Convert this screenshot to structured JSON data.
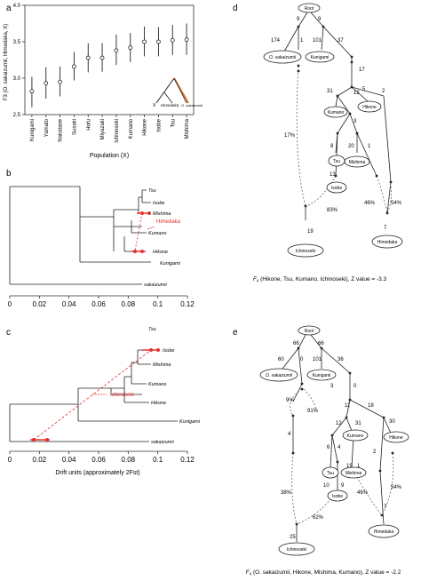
{
  "panel_labels": {
    "a": "a",
    "b": "b",
    "c": "c",
    "d": "d",
    "e": "e"
  },
  "panel_a": {
    "ylabel": "F3 (O. sakaizumii; Himedaka, X)",
    "xlabel": "Population (X)",
    "inset": {
      "left": "Himedaka",
      "right": "O. sakaizumii",
      "x_mark": "X"
    }
  },
  "chart_data": {
    "type": "scatter",
    "title": "",
    "xlabel": "Population (X)",
    "ylabel": "F3 (O. sakaizumii; Himedaka, X)",
    "categories": [
      "Kunigami",
      "Yamato",
      "Nakatane",
      "Susaki",
      "Hofu",
      "Miyazaki",
      "Ichinoseki",
      "Kumano",
      "Hikone",
      "Isobe",
      "Tsu",
      "Mishima"
    ],
    "values": [
      2.82,
      2.93,
      2.95,
      3.16,
      3.28,
      3.28,
      3.38,
      3.42,
      3.5,
      3.5,
      3.52,
      3.53
    ],
    "error_low": [
      2.6,
      2.72,
      2.75,
      2.97,
      3.08,
      3.09,
      3.18,
      3.22,
      3.3,
      3.3,
      3.32,
      3.32
    ],
    "error_high": [
      3.02,
      3.15,
      3.16,
      3.36,
      3.48,
      3.48,
      3.6,
      3.62,
      3.71,
      3.7,
      3.73,
      3.75
    ],
    "ylim": [
      2.5,
      4.0
    ],
    "yticks": [
      "2.5",
      "3.0",
      "3.5",
      "4.0"
    ]
  },
  "tree_b": {
    "tips": [
      "Tsu",
      "Isobe",
      "Mishima",
      "Kumano",
      "Hikone",
      "Kunigami",
      "sakaizumii"
    ],
    "migrant": "Himedaka",
    "xticks": [
      "0",
      "0.02",
      "0.04",
      "0.06",
      "0.08",
      "0.1",
      "0.12"
    ]
  },
  "tree_c": {
    "tips": [
      "Tsu",
      "Isobe",
      "Mishima",
      "Kumano",
      "Hikone",
      "Kunigami",
      "sakaizumii"
    ],
    "migrant": "Ichinoseki",
    "xticks": [
      "0",
      "0.02",
      "0.04",
      "0.06",
      "0.08",
      "0.1",
      "0.12"
    ],
    "xlabel": "Drift units (approximately 2Fst)"
  },
  "graph_d": {
    "nodes": {
      "root": "Root",
      "sak": "O. sakaizumii",
      "kun": "Kunigami",
      "kum": "Kumano",
      "hik": "Hikone",
      "tsu": "Tsu",
      "mis": "Mishima",
      "iso": "Isobe",
      "him": "Himedaka",
      "ich": "Ichinoseki"
    },
    "edges": [
      "9",
      "9",
      "174",
      "1",
      "101",
      "37",
      "17",
      "31",
      "12",
      "5",
      "2",
      "3",
      "8",
      "20",
      "1",
      "13",
      "7",
      "19"
    ],
    "admix": [
      "17%",
      "46%",
      "54%",
      "83%"
    ],
    "caption_pre": "F",
    "caption_sub": "4",
    "caption_post": " (Hikone, Tsu, Kumano, Ichinoseki), Z value = -3.3"
  },
  "graph_e": {
    "nodes": {
      "root": "Root",
      "sak": "O. sakaizumii",
      "kun": "Kunigami",
      "kum": "Kumano",
      "hik": "Hikone",
      "tsu": "Tsu",
      "mis": "Mishima",
      "iso": "Isobe",
      "him": "Himedaka",
      "ich": "Ichinoseki"
    },
    "edges": [
      "66",
      "66",
      "60",
      "0",
      "101",
      "36",
      "3",
      "0",
      "11",
      "18",
      "12",
      "31",
      "30",
      "6",
      "4",
      "19",
      "1",
      "2",
      "10",
      "9",
      "7",
      "4",
      "25"
    ],
    "admix": [
      "9%",
      "91%",
      "38%",
      "62%",
      "46%",
      "54%"
    ],
    "caption_pre": "F",
    "caption_sub": "4",
    "caption_post": " (O. sakaizumii, Hikone, Mishima, Kumano), Z value = -2.2"
  },
  "colors": {
    "red": "#e53030",
    "orange": "#d2691e"
  }
}
